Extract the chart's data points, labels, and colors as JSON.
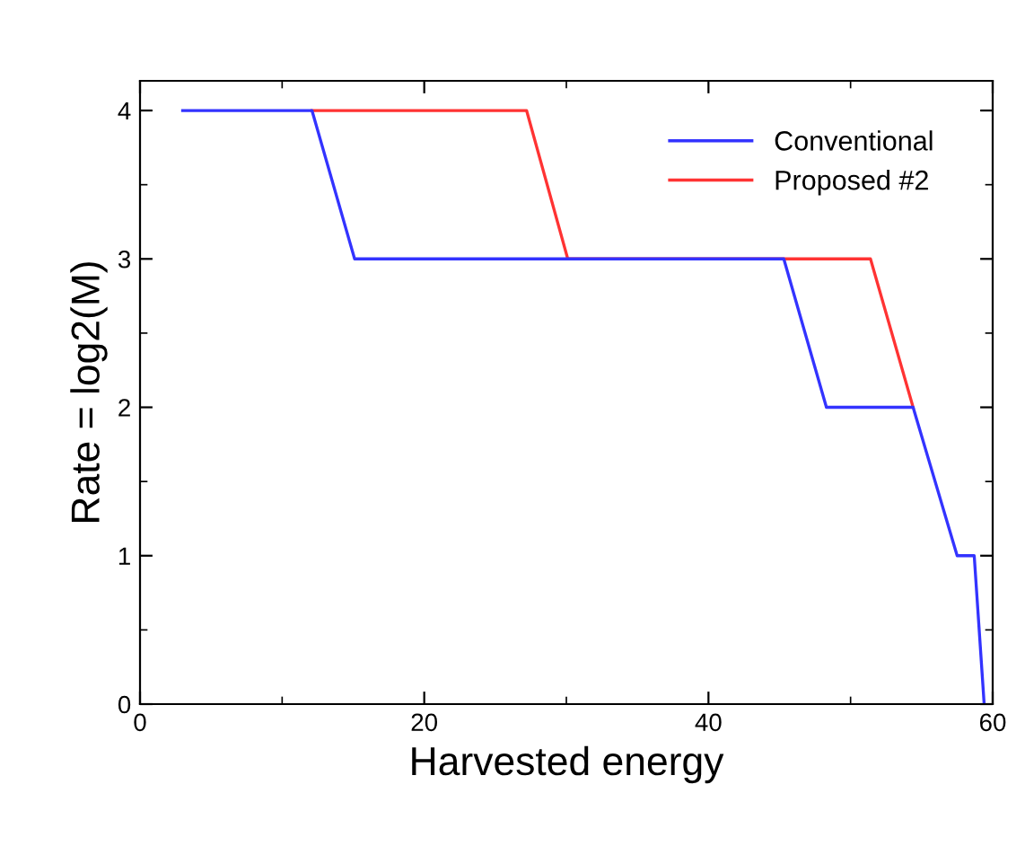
{
  "chart_data": {
    "type": "line",
    "xlabel": "Harvested energy",
    "ylabel": "Rate = log2(M)",
    "series": [
      {
        "name": "Proposed #2",
        "color": "#ff3333",
        "x": [
          12.1,
          27.2,
          30.1,
          51.4,
          54.4
        ],
        "values": [
          4,
          4,
          3,
          3,
          2
        ]
      },
      {
        "name": "Conventional",
        "color": "#3333ff",
        "x": [
          3.0,
          12.1,
          15.1,
          45.3,
          48.3,
          54.4,
          57.5,
          58.7,
          59.4
        ],
        "values": [
          4,
          4,
          3,
          3,
          2,
          2,
          1,
          1,
          0
        ]
      }
    ],
    "xlim": [
      0,
      60
    ],
    "xticks": [
      0,
      20,
      40,
      60
    ],
    "ylim": [
      0,
      4.2
    ],
    "yticks": [
      0,
      1,
      2,
      3,
      4
    ],
    "legend": "top right",
    "grid": false,
    "marker": "none",
    "line_style": "solid"
  }
}
